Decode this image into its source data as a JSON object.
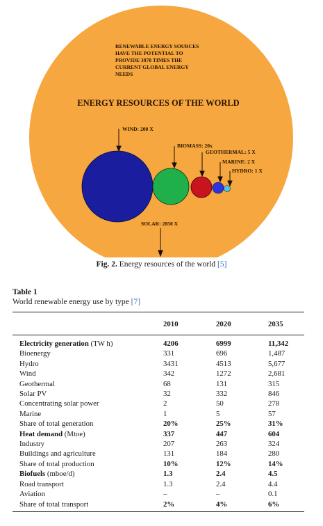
{
  "figure": {
    "note": [
      "RENEWABLE ENERGY SOURCES",
      "HAVE THE POTENTIAL TO",
      "PROVIDE 3078 TIMES THE",
      "CURRENT GLOBAL ENERGY",
      "NEEDS"
    ],
    "title": "ENERGY RESOURCES OF THE WORLD",
    "labels": {
      "wind": "WIND: 200 X",
      "biomass": "BIOMASS: 20x",
      "geothermal": "GEOTHERMAL: 5 X",
      "marine": "MARINE: 2 X",
      "hydro": "HYDRO: 1 X",
      "solar": "SOLAR: 2850 X"
    },
    "colors": {
      "background": "#F6A73F",
      "wind": "#1A1E9E",
      "biomass": "#1FB04C",
      "geothermal": "#C8141E",
      "marine": "#2A35E0",
      "hydro": "#4FC3E8"
    }
  },
  "caption": {
    "label": "Fig. 2.",
    "text": "Energy resources of the world",
    "ref": "[5]"
  },
  "table": {
    "title": "Table 1",
    "description": "World renewable energy use by type",
    "ref": "[7]",
    "columns": [
      "",
      "2010",
      "2020",
      "2035"
    ],
    "rows": [
      {
        "label": "Electricity generation",
        "unit": "(TW h)",
        "values": [
          "4206",
          "6999",
          "11,342"
        ],
        "bold": true
      },
      {
        "label": "Bioenergy",
        "unit": "",
        "values": [
          "331",
          "696",
          "1,487"
        ],
        "bold": false
      },
      {
        "label": "Hydro",
        "unit": "",
        "values": [
          "3431",
          "4513",
          "5,677"
        ],
        "bold": false
      },
      {
        "label": "Wind",
        "unit": "",
        "values": [
          "342",
          "1272",
          "2,681"
        ],
        "bold": false
      },
      {
        "label": "Geothermal",
        "unit": "",
        "values": [
          "68",
          "131",
          "315"
        ],
        "bold": false
      },
      {
        "label": "Solar PV",
        "unit": "",
        "values": [
          "32",
          "332",
          "846"
        ],
        "bold": false
      },
      {
        "label": "Concentrating solar power",
        "unit": "",
        "values": [
          "2",
          "50",
          "278"
        ],
        "bold": false
      },
      {
        "label": "Marine",
        "unit": "",
        "values": [
          "1",
          "5",
          "57"
        ],
        "bold": false
      },
      {
        "label": "Share of total generation",
        "unit": "",
        "values": [
          "20%",
          "25%",
          "31%"
        ],
        "bold": false,
        "bold_values": true
      },
      {
        "label": "Heat demand",
        "unit": "(Mtoe)",
        "values": [
          "337",
          "447",
          "604"
        ],
        "bold": true
      },
      {
        "label": "Industry",
        "unit": "",
        "values": [
          "207",
          "263",
          "324"
        ],
        "bold": false
      },
      {
        "label": "Buildings and agriculture",
        "unit": "",
        "values": [
          "131",
          "184",
          "280"
        ],
        "bold": false
      },
      {
        "label": "Share of total production",
        "unit": "",
        "values": [
          "10%",
          "12%",
          "14%"
        ],
        "bold": false,
        "bold_values": true
      },
      {
        "label": "Biofuels",
        "unit": "(mboe/d)",
        "values": [
          "1.3",
          "2.4",
          "4.5"
        ],
        "bold": true
      },
      {
        "label": "Road transport",
        "unit": "",
        "values": [
          "1.3",
          "2.4",
          "4.4"
        ],
        "bold": false
      },
      {
        "label": "Aviation",
        "unit": "",
        "values": [
          "–",
          "–",
          "0.1"
        ],
        "bold": false
      },
      {
        "label": "Share of total transport",
        "unit": "",
        "values": [
          "2%",
          "4%",
          "6%"
        ],
        "bold": false,
        "bold_values": true
      }
    ]
  }
}
